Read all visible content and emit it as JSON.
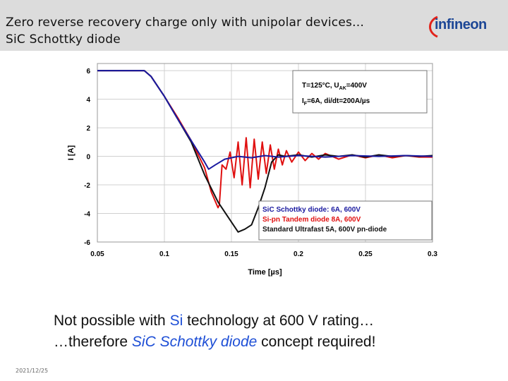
{
  "slide": {
    "title_line1": "Zero reverse recovery charge only with unipolar devices…",
    "title_line2": "SiC Schottky diode",
    "logo_text": "infineon",
    "footer_date": "2021/12/25",
    "bottom_line1_pre": "Not possible with ",
    "bottom_line1_accent": "Si",
    "bottom_line1_post": " technology at 600 V rating…",
    "bottom_line2_pre": "…therefore ",
    "bottom_line2_italic": "SiC Schottky diode",
    "bottom_line2_post": " concept required!",
    "colors": {
      "accent": "#1e4fd6",
      "header_bg": "#dcdcdc",
      "logo": "#1d4796"
    }
  },
  "chart_data": {
    "type": "line",
    "xlabel": "Time [µs]",
    "ylabel": "I [A]",
    "xlim": [
      0.05,
      0.3
    ],
    "ylim": [
      -6,
      6.5
    ],
    "xticks": [
      0.05,
      0.1,
      0.15,
      0.2,
      0.25,
      0.3
    ],
    "xtick_labels": [
      "0.05",
      "0.1",
      "0.15",
      "0.2",
      "0.25",
      "0.3"
    ],
    "yticks": [
      -6,
      -4,
      -2,
      0,
      2,
      4,
      6
    ],
    "ytick_labels": [
      "-6",
      "-4",
      "-2",
      "0",
      "2",
      "4",
      "6"
    ],
    "grid": true,
    "conditions_line1": "T=125°C, U",
    "conditions_line1_sub": "AK",
    "conditions_line1_post": "=400V",
    "conditions_line2": "I",
    "conditions_line2_sub": "F",
    "conditions_line2_post": "=6A, di/dt=200A/µs",
    "legend_position": "bottom-right",
    "series": [
      {
        "name": "SiC Schottky diode: 6A, 600V",
        "color": "#1a1aa0",
        "points": [
          [
            0.05,
            6.0
          ],
          [
            0.085,
            6.0
          ],
          [
            0.09,
            5.6
          ],
          [
            0.1,
            4.2
          ],
          [
            0.11,
            2.6
          ],
          [
            0.12,
            1.1
          ],
          [
            0.13,
            -0.4
          ],
          [
            0.133,
            -0.9
          ],
          [
            0.138,
            -0.6
          ],
          [
            0.145,
            -0.2
          ],
          [
            0.155,
            0.0
          ],
          [
            0.165,
            -0.1
          ],
          [
            0.175,
            0.05
          ],
          [
            0.185,
            -0.05
          ],
          [
            0.2,
            0.05
          ],
          [
            0.22,
            -0.05
          ],
          [
            0.24,
            0.05
          ],
          [
            0.26,
            0.0
          ],
          [
            0.28,
            0.05
          ],
          [
            0.3,
            0.0
          ]
        ]
      },
      {
        "name": "Si-pn Tandem diode 8A, 600V",
        "color": "#e01010",
        "points": [
          [
            0.05,
            6.0
          ],
          [
            0.085,
            6.0
          ],
          [
            0.09,
            5.6
          ],
          [
            0.1,
            4.2
          ],
          [
            0.11,
            2.7
          ],
          [
            0.12,
            1.1
          ],
          [
            0.13,
            -0.8
          ],
          [
            0.135,
            -2.5
          ],
          [
            0.14,
            -3.6
          ],
          [
            0.141,
            -3.4
          ],
          [
            0.143,
            -0.6
          ],
          [
            0.146,
            -0.9
          ],
          [
            0.149,
            0.3
          ],
          [
            0.152,
            -1.5
          ],
          [
            0.155,
            1.0
          ],
          [
            0.158,
            -2.0
          ],
          [
            0.161,
            1.3
          ],
          [
            0.164,
            -2.2
          ],
          [
            0.167,
            1.2
          ],
          [
            0.17,
            -1.6
          ],
          [
            0.173,
            1.0
          ],
          [
            0.176,
            -1.2
          ],
          [
            0.179,
            0.8
          ],
          [
            0.182,
            -0.9
          ],
          [
            0.185,
            0.5
          ],
          [
            0.188,
            -0.6
          ],
          [
            0.191,
            0.4
          ],
          [
            0.195,
            -0.4
          ],
          [
            0.2,
            0.3
          ],
          [
            0.205,
            -0.3
          ],
          [
            0.21,
            0.2
          ],
          [
            0.215,
            -0.2
          ],
          [
            0.22,
            0.2
          ],
          [
            0.23,
            -0.2
          ],
          [
            0.24,
            0.1
          ],
          [
            0.25,
            -0.1
          ],
          [
            0.26,
            0.1
          ],
          [
            0.27,
            -0.1
          ],
          [
            0.28,
            0.05
          ],
          [
            0.29,
            -0.05
          ],
          [
            0.3,
            -0.05
          ]
        ]
      },
      {
        "name": "Standard Ultrafast 5A, 600V pn-diode",
        "color": "#111111",
        "points": [
          [
            0.05,
            6.0
          ],
          [
            0.085,
            6.0
          ],
          [
            0.09,
            5.6
          ],
          [
            0.1,
            4.2
          ],
          [
            0.11,
            2.6
          ],
          [
            0.12,
            1.0
          ],
          [
            0.13,
            -1.3
          ],
          [
            0.14,
            -3.2
          ],
          [
            0.15,
            -4.6
          ],
          [
            0.155,
            -5.3
          ],
          [
            0.16,
            -5.1
          ],
          [
            0.165,
            -4.8
          ],
          [
            0.17,
            -3.6
          ],
          [
            0.175,
            -2.2
          ],
          [
            0.18,
            -0.4
          ],
          [
            0.185,
            0.1
          ],
          [
            0.19,
            0.0
          ],
          [
            0.2,
            0.1
          ],
          [
            0.21,
            -0.05
          ],
          [
            0.22,
            0.1
          ],
          [
            0.23,
            0.0
          ],
          [
            0.24,
            0.1
          ],
          [
            0.25,
            -0.05
          ],
          [
            0.26,
            0.1
          ],
          [
            0.27,
            0.0
          ],
          [
            0.28,
            0.05
          ],
          [
            0.29,
            0.0
          ],
          [
            0.3,
            0.05
          ]
        ]
      }
    ]
  }
}
